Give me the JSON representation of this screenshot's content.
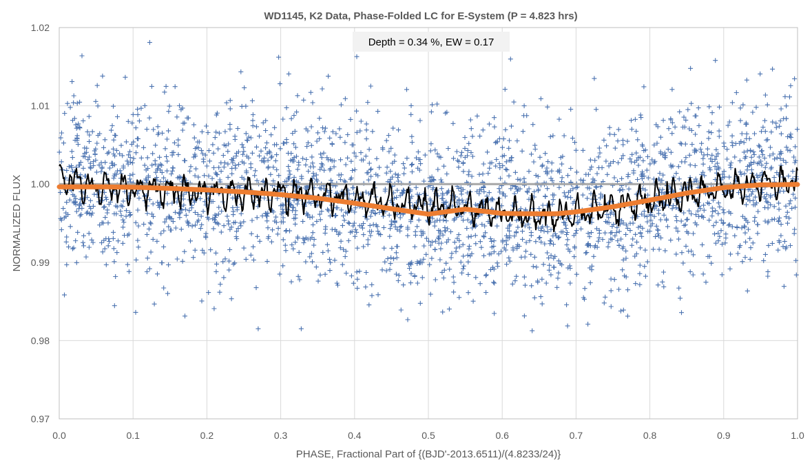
{
  "chart_data": {
    "type": "scatter",
    "title": "WD1145, K2 Data, Phase-Folded LC for E-System (P = 4.823 hrs)",
    "xlabel": "PHASE, Fractional Part of {(BJD'-2013.6511)/(4.8233/24)}",
    "ylabel": "NORMALIZED FLUX",
    "xlim": [
      0.0,
      1.0
    ],
    "ylim": [
      0.97,
      1.02
    ],
    "x_ticks": [
      "0.0",
      "0.1",
      "0.2",
      "0.3",
      "0.4",
      "0.5",
      "0.6",
      "0.7",
      "0.8",
      "0.9",
      "1.0"
    ],
    "y_ticks": [
      "0.97",
      "0.98",
      "0.99",
      "1.00",
      "1.01",
      "1.02"
    ],
    "grid": true,
    "legend": "none",
    "annotation": "Depth = 0.34 %, EW = 0.17",
    "series": [
      {
        "role": "observations",
        "marker": "plus",
        "color": "#4a72b0",
        "point_count": 2800,
        "center": 0.9995,
        "scatter_sigma": 0.0055
      },
      {
        "role": "smoothed",
        "color": "#000000",
        "x": [
          0.0,
          0.05,
          0.1,
          0.15,
          0.2,
          0.25,
          0.3,
          0.35,
          0.4,
          0.45,
          0.5,
          0.55,
          0.6,
          0.65,
          0.7,
          0.75,
          0.8,
          0.85,
          0.9,
          0.95,
          1.0
        ],
        "y": [
          1.0008,
          0.9995,
          0.9994,
          0.9992,
          0.999,
          0.9988,
          0.9987,
          0.9985,
          0.998,
          0.9975,
          0.9972,
          0.997,
          0.9962,
          0.996,
          0.9962,
          0.997,
          0.998,
          0.9988,
          0.9995,
          1.0,
          1.0005
        ]
      },
      {
        "role": "model",
        "color": "#ed7d31",
        "x": [
          0.0,
          0.05,
          0.1,
          0.15,
          0.2,
          0.25,
          0.3,
          0.35,
          0.4,
          0.45,
          0.5,
          0.55,
          0.6,
          0.625,
          0.65,
          0.675,
          0.7,
          0.75,
          0.8,
          0.85,
          0.9,
          0.95,
          1.0
        ],
        "y": [
          0.99965,
          0.99965,
          0.9996,
          0.99945,
          0.99925,
          0.999,
          0.99865,
          0.9982,
          0.99755,
          0.99685,
          0.99615,
          0.9968,
          0.99625,
          0.99622,
          0.9962,
          0.99622,
          0.99645,
          0.9971,
          0.99795,
          0.99885,
          0.99955,
          0.9999,
          0.99995
        ]
      },
      {
        "role": "baseline",
        "color": "#a6a6a6",
        "x": [
          0.0,
          1.0
        ],
        "y": [
          1.0,
          1.0
        ]
      }
    ]
  }
}
